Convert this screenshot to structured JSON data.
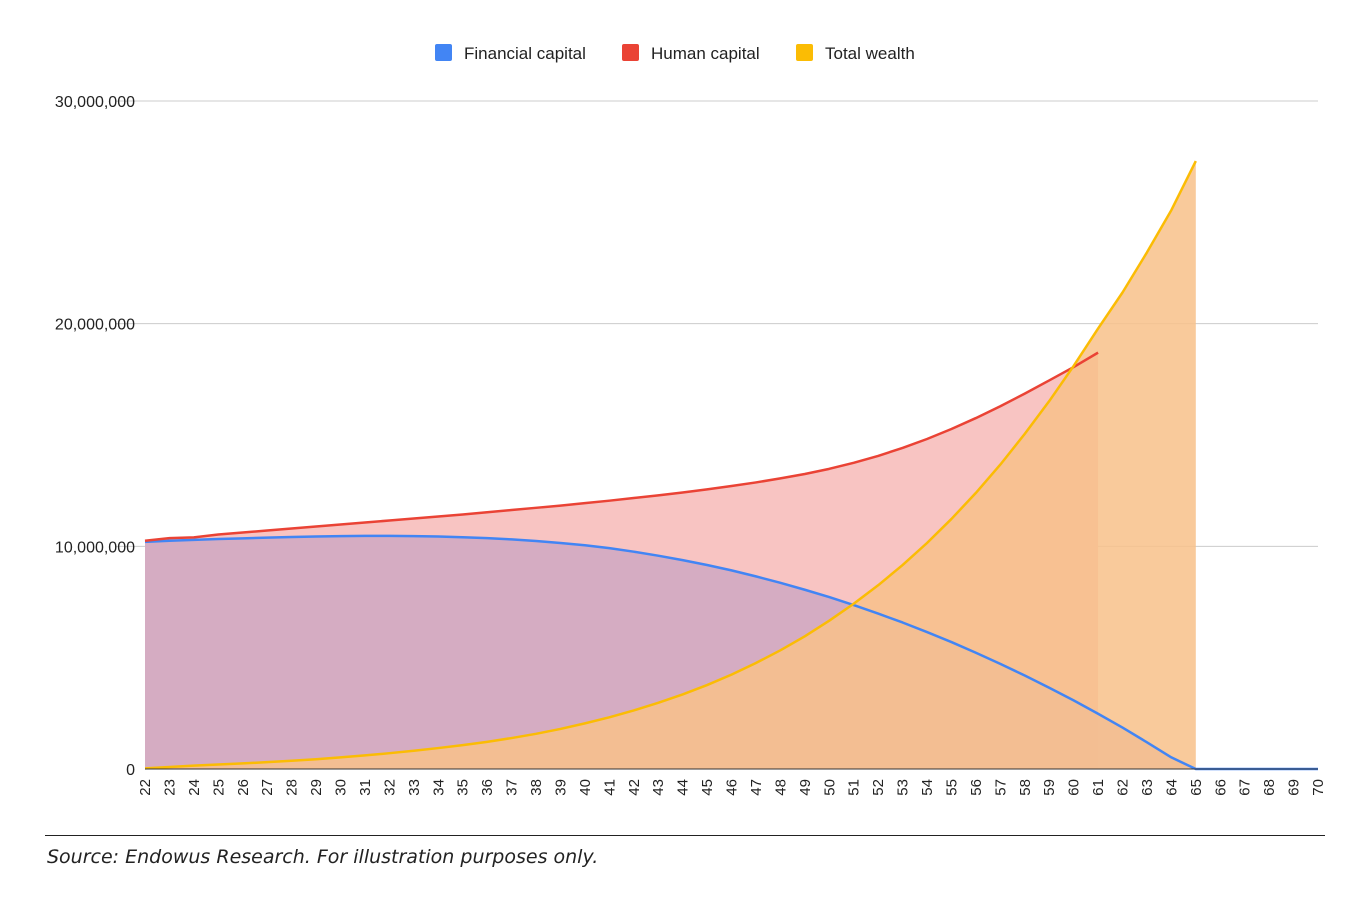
{
  "chart_data": {
    "type": "area",
    "title": "",
    "xlabel": "",
    "ylabel": "",
    "x": [
      22,
      23,
      24,
      25,
      26,
      27,
      28,
      29,
      30,
      31,
      32,
      33,
      34,
      35,
      36,
      37,
      38,
      39,
      40,
      41,
      42,
      43,
      44,
      45,
      46,
      47,
      48,
      49,
      50,
      51,
      52,
      53,
      54,
      55,
      56,
      57,
      58,
      59,
      60,
      61,
      62,
      63,
      64,
      65,
      66,
      67,
      68,
      69,
      70
    ],
    "x_tick_labels": [
      "22",
      "23",
      "24",
      "25",
      "26",
      "27",
      "28",
      "29",
      "30",
      "31",
      "32",
      "33",
      "34",
      "35",
      "36",
      "37",
      "38",
      "39",
      "40",
      "41",
      "42",
      "43",
      "44",
      "45",
      "46",
      "47",
      "48",
      "49",
      "50",
      "51",
      "52",
      "53",
      "54",
      "55",
      "56",
      "57",
      "58",
      "59",
      "60",
      "61",
      "62",
      "63",
      "64",
      "65",
      "66",
      "67",
      "68",
      "69",
      "70"
    ],
    "ylim": [
      0,
      30000000
    ],
    "y_ticks": [
      0,
      10000000,
      20000000,
      30000000
    ],
    "y_tick_labels": [
      "0",
      "10,000,000",
      "20,000,000",
      "30,000,000"
    ],
    "grid": true,
    "legend_position": "top-center",
    "series": [
      {
        "name": "Financial capital",
        "color": "#4285F4",
        "fill": "#D0AAC2",
        "values": [
          10200000,
          10250000,
          10290000,
          10330000,
          10360000,
          10390000,
          10420000,
          10440000,
          10460000,
          10470000,
          10470000,
          10460000,
          10440000,
          10410000,
          10370000,
          10310000,
          10240000,
          10150000,
          10050000,
          9920000,
          9760000,
          9580000,
          9380000,
          9160000,
          8920000,
          8650000,
          8360000,
          8050000,
          7720000,
          7360000,
          6980000,
          6580000,
          6150000,
          5700000,
          5220000,
          4720000,
          4200000,
          3650000,
          3080000,
          2480000,
          1860000,
          1200000,
          520000,
          0,
          0,
          0,
          0,
          0,
          0
        ]
      },
      {
        "name": "Human capital",
        "color": "#EA4335",
        "fill": "#F8C4C2",
        "values": [
          10250000,
          10370000,
          10400000,
          10530000,
          10620000,
          10710000,
          10800000,
          10890000,
          10980000,
          11070000,
          11160000,
          11250000,
          11340000,
          11430000,
          11530000,
          11630000,
          11730000,
          11830000,
          11940000,
          12050000,
          12170000,
          12290000,
          12420000,
          12560000,
          12710000,
          12870000,
          13050000,
          13250000,
          13480000,
          13750000,
          14060000,
          14420000,
          14820000,
          15270000,
          15760000,
          16290000,
          16860000,
          17450000,
          18050000,
          18700000,
          null,
          null,
          null,
          null,
          null,
          null,
          null,
          null,
          null
        ]
      },
      {
        "name": "Total wealth",
        "color": "#FBBC04",
        "fill": "#F8C18A",
        "values": [
          30000,
          90000,
          150000,
          200000,
          250000,
          310000,
          370000,
          440000,
          520000,
          610000,
          710000,
          820000,
          940000,
          1070000,
          1220000,
          1390000,
          1580000,
          1800000,
          2050000,
          2320000,
          2630000,
          2970000,
          3350000,
          3770000,
          4240000,
          4760000,
          5330000,
          5960000,
          6660000,
          7420000,
          8250000,
          9160000,
          10150000,
          11230000,
          12400000,
          13670000,
          15050000,
          16520000,
          18100000,
          19780000,
          21400000,
          23200000,
          25100000,
          27300000,
          null,
          null,
          null,
          null,
          null
        ]
      }
    ],
    "annotation": "Source: Endowus Research. For illustration purposes only."
  }
}
